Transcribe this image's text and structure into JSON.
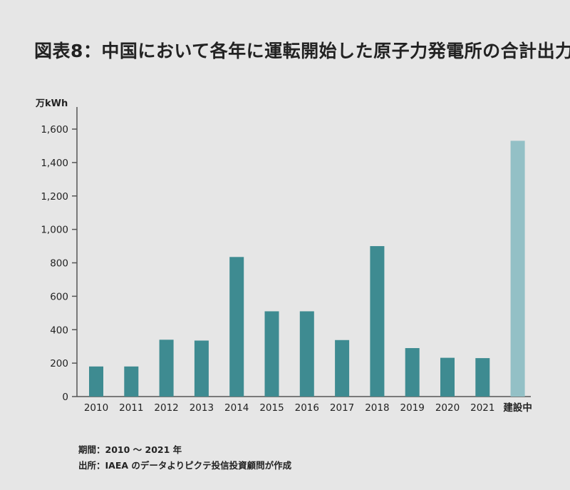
{
  "title": "図表8：中国において各年に運転開始した原子力発電所の合計出力",
  "notes": {
    "period": "期間：2010 〜 2021 年",
    "source": "出所：IAEA のデータよりピクテ投信投資顧問が作成"
  },
  "chart_data": {
    "type": "bar",
    "ylabel": "万kWh",
    "ylim": [
      0,
      1700
    ],
    "yticks": [
      "0",
      "200",
      "400",
      "600",
      "800",
      "1,000",
      "1,200",
      "1,400",
      "1,600"
    ],
    "ytick_values": [
      0,
      200,
      400,
      600,
      800,
      1000,
      1200,
      1400,
      1600
    ],
    "categories": [
      "2010",
      "2011",
      "2012",
      "2013",
      "2014",
      "2015",
      "2016",
      "2017",
      "2018",
      "2019",
      "2020",
      "2021",
      "建設中"
    ],
    "values": [
      180,
      180,
      340,
      335,
      835,
      510,
      510,
      338,
      900,
      290,
      232,
      230,
      1530
    ],
    "colors": {
      "operating": "#3e8b91",
      "construction": "#93c0c6",
      "axis": "#555555"
    },
    "grid": false
  }
}
